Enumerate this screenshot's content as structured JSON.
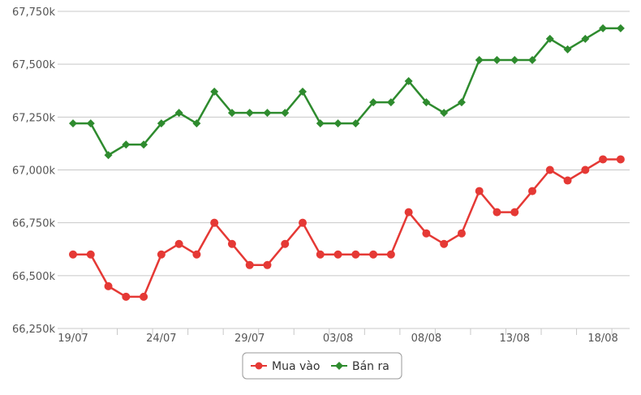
{
  "chart_data": {
    "type": "line",
    "title": "",
    "xlabel": "",
    "ylabel": "",
    "ylim": [
      66250,
      67750
    ],
    "y_ticks": [
      "66,250k",
      "66,500k",
      "66,750k",
      "67,000k",
      "67,250k",
      "67,500k",
      "67,750k"
    ],
    "y_tick_values": [
      66250,
      66500,
      66750,
      67000,
      67250,
      67500,
      67750
    ],
    "x": [
      "19/07",
      "20/07",
      "21/07",
      "22/07",
      "23/07",
      "24/07",
      "25/07",
      "26/07",
      "27/07",
      "28/07",
      "29/07",
      "30/07",
      "31/07",
      "01/08",
      "02/08",
      "03/08",
      "04/08",
      "05/08",
      "06/08",
      "07/08",
      "08/08",
      "09/08",
      "10/08",
      "11/08",
      "12/08",
      "13/08",
      "14/08",
      "15/08",
      "16/08",
      "17/08",
      "18/08",
      "19/08"
    ],
    "x_tick_labels": [
      "19/07",
      "24/07",
      "29/07",
      "03/08",
      "08/08",
      "13/08",
      "18/08"
    ],
    "x_tick_indices": [
      0,
      5,
      10,
      15,
      20,
      25,
      30
    ],
    "grid": true,
    "legend_position": "bottom-center",
    "series": [
      {
        "name": "Mua vào",
        "color": "#e53935",
        "marker": "circle",
        "values": [
          66600,
          66600,
          66450,
          66400,
          66400,
          66600,
          66650,
          66600,
          66750,
          66650,
          66550,
          66550,
          66650,
          66750,
          66600,
          66600,
          66600,
          66600,
          66600,
          66800,
          66700,
          66650,
          66700,
          66900,
          66800,
          66800,
          66900,
          67000,
          66950,
          67000,
          67050,
          67050
        ]
      },
      {
        "name": "Bán ra",
        "color": "#2e8b2e",
        "marker": "diamond",
        "values": [
          67220,
          67220,
          67070,
          67120,
          67120,
          67220,
          67270,
          67220,
          67370,
          67270,
          67270,
          67270,
          67270,
          67370,
          67220,
          67220,
          67220,
          67320,
          67320,
          67420,
          67320,
          67270,
          67320,
          67520,
          67520,
          67520,
          67520,
          67620,
          67570,
          67620,
          67670,
          67670
        ]
      }
    ]
  }
}
